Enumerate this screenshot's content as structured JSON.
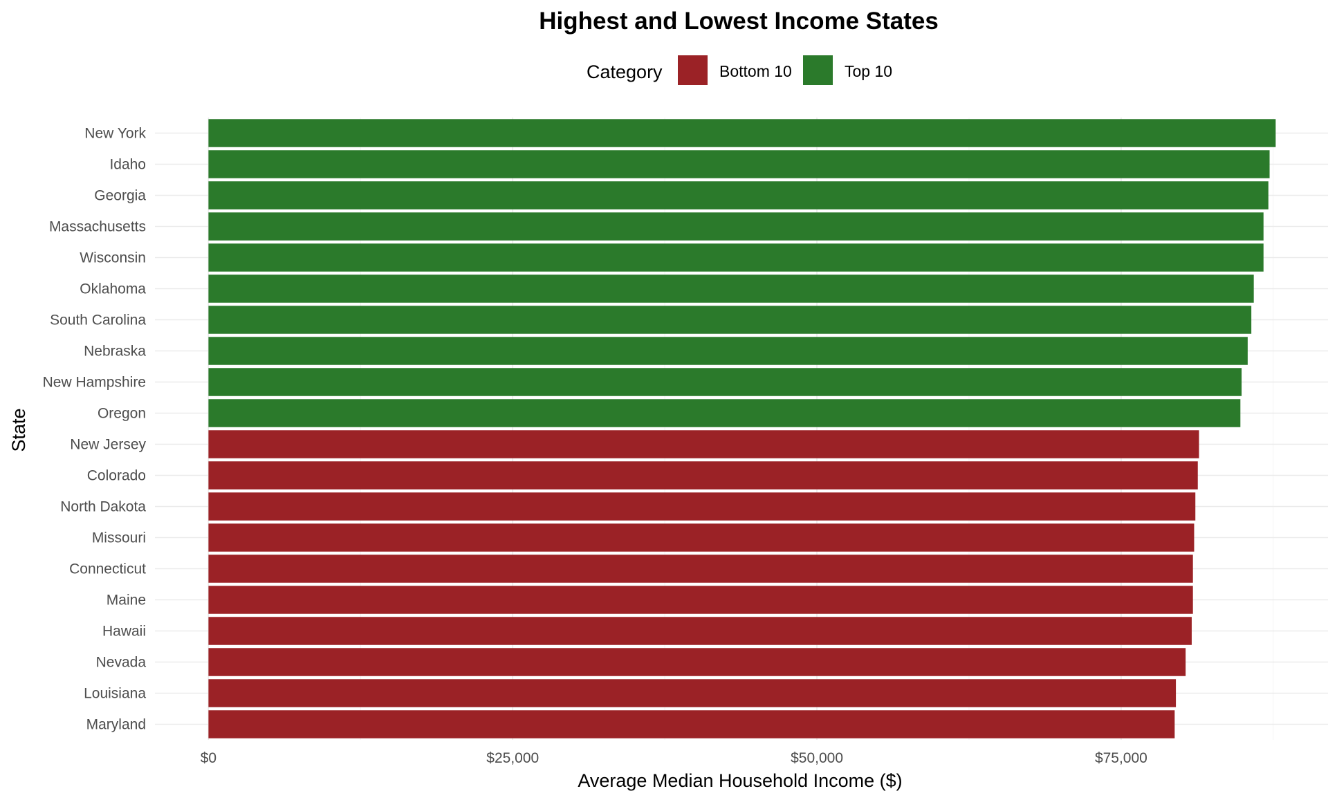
{
  "chart_data": {
    "type": "bar",
    "orientation": "horizontal",
    "title": "Highest and Lowest Income States",
    "xlabel": "Average Median Household Income ($)",
    "ylabel": "State",
    "xlim": [
      -4400,
      92000
    ],
    "x_ticks": [
      0,
      25000,
      50000,
      75000
    ],
    "x_tick_labels": [
      "$0",
      "$25,000",
      "$50,000",
      "$75,000"
    ],
    "grid": true,
    "legend": {
      "title": "Category",
      "position": "top",
      "entries": [
        {
          "label": "Bottom 10",
          "color": "#9b2226"
        },
        {
          "label": "Top 10",
          "color": "#2b7a2b"
        }
      ]
    },
    "categories": [
      "New York",
      "Idaho",
      "Georgia",
      "Massachusetts",
      "Wisconsin",
      "Oklahoma",
      "South Carolina",
      "Nebraska",
      "New Hampshire",
      "Oregon",
      "New Jersey",
      "Colorado",
      "North Dakota",
      "Missouri",
      "Connecticut",
      "Maine",
      "Hawaii",
      "Nevada",
      "Louisiana",
      "Maryland"
    ],
    "values": [
      87700,
      87200,
      87100,
      86700,
      86700,
      85900,
      85700,
      85400,
      84900,
      84800,
      81400,
      81300,
      81100,
      81000,
      80900,
      80900,
      80800,
      80300,
      79500,
      79400
    ],
    "category_of_bar": [
      "Top 10",
      "Top 10",
      "Top 10",
      "Top 10",
      "Top 10",
      "Top 10",
      "Top 10",
      "Top 10",
      "Top 10",
      "Top 10",
      "Bottom 10",
      "Bottom 10",
      "Bottom 10",
      "Bottom 10",
      "Bottom 10",
      "Bottom 10",
      "Bottom 10",
      "Bottom 10",
      "Bottom 10",
      "Bottom 10"
    ]
  }
}
